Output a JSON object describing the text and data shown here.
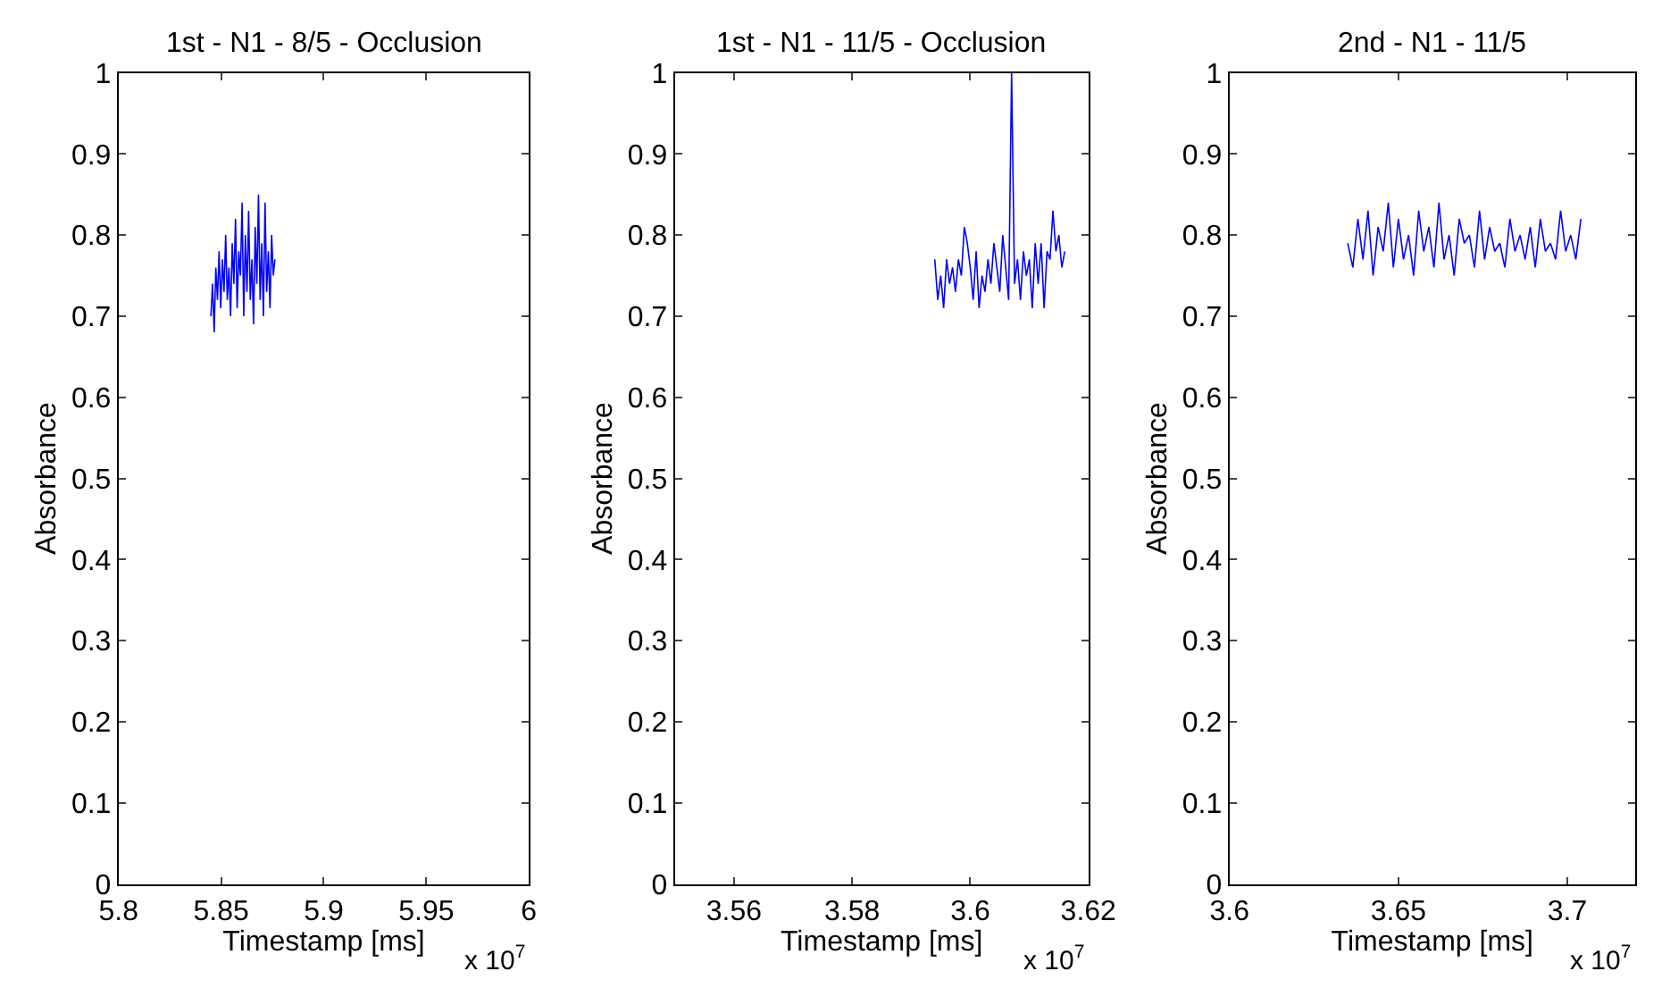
{
  "chart_data": [
    {
      "type": "line",
      "title": "1st - N1 - 8/5 - Occlusion",
      "xlabel": "Timestamp [ms]",
      "ylabel": "Absorbance",
      "annotations": [
        "x 10$^{7}$"
      ],
      "xlim": [
        5.8,
        6
      ],
      "xticks": [
        5.8,
        5.85,
        5.9,
        5.95,
        6
      ],
      "ylim": [
        0,
        1
      ],
      "yticks": [
        0,
        0.1,
        0.2,
        0.3,
        0.4,
        0.5,
        0.6,
        0.7,
        0.8,
        0.9,
        1
      ],
      "series": [
        {
          "color": "#0000ff",
          "x": [
            5.845,
            5.8458,
            5.8466,
            5.8474,
            5.8482,
            5.849,
            5.8498,
            5.8506,
            5.8514,
            5.8522,
            5.853,
            5.8538,
            5.8546,
            5.8554,
            5.8562,
            5.857,
            5.8578,
            5.8586,
            5.8594,
            5.8602,
            5.861,
            5.8618,
            5.8626,
            5.8634,
            5.8642,
            5.865,
            5.8658,
            5.8666,
            5.8674,
            5.8682,
            5.869,
            5.8698,
            5.8706,
            5.8714,
            5.8722,
            5.873,
            5.8738,
            5.8746,
            5.8754,
            5.8762
          ],
          "values": [
            0.7,
            0.74,
            0.68,
            0.76,
            0.72,
            0.78,
            0.71,
            0.77,
            0.73,
            0.8,
            0.72,
            0.76,
            0.7,
            0.79,
            0.74,
            0.82,
            0.71,
            0.78,
            0.75,
            0.84,
            0.7,
            0.8,
            0.73,
            0.83,
            0.72,
            0.77,
            0.69,
            0.81,
            0.74,
            0.85,
            0.72,
            0.79,
            0.7,
            0.84,
            0.73,
            0.78,
            0.71,
            0.8,
            0.75,
            0.77
          ]
        }
      ]
    },
    {
      "type": "line",
      "title": "1st - N1 - 11/5 - Occlusion",
      "xlabel": "Timestamp [ms]",
      "ylabel": "Absorbance",
      "annotations": [
        "x 10$^{7}$"
      ],
      "xlim": [
        3.55,
        3.62
      ],
      "xticks": [
        3.56,
        3.58,
        3.6,
        3.62
      ],
      "ylim": [
        0,
        1
      ],
      "yticks": [
        0,
        0.1,
        0.2,
        0.3,
        0.4,
        0.5,
        0.6,
        0.7,
        0.8,
        0.9,
        1
      ],
      "series": [
        {
          "color": "#0000ff",
          "x": [
            3.594,
            3.5945,
            3.595,
            3.5955,
            3.596,
            3.5965,
            3.597,
            3.5975,
            3.598,
            3.5985,
            3.599,
            3.5995,
            3.6,
            3.6005,
            3.601,
            3.6015,
            3.602,
            3.6025,
            3.603,
            3.6035,
            3.604,
            3.6045,
            3.605,
            3.6055,
            3.606,
            3.6065,
            3.607,
            3.6075,
            3.608,
            3.6085,
            3.609,
            3.6095,
            3.61,
            3.6105,
            3.611,
            3.6115,
            3.612,
            3.6125,
            3.613,
            3.6135,
            3.614,
            3.6145,
            3.615,
            3.6155,
            3.616
          ],
          "values": [
            0.77,
            0.72,
            0.75,
            0.71,
            0.77,
            0.74,
            0.76,
            0.73,
            0.77,
            0.75,
            0.81,
            0.79,
            0.76,
            0.72,
            0.78,
            0.71,
            0.75,
            0.73,
            0.77,
            0.74,
            0.79,
            0.76,
            0.73,
            0.8,
            0.76,
            0.72,
            1.0,
            0.74,
            0.77,
            0.72,
            0.78,
            0.75,
            0.77,
            0.71,
            0.79,
            0.74,
            0.79,
            0.71,
            0.78,
            0.77,
            0.83,
            0.78,
            0.8,
            0.76,
            0.78
          ]
        }
      ]
    },
    {
      "type": "line",
      "title": "2nd - N1 - 11/5",
      "xlabel": "Timestamp [ms]",
      "ylabel": "Absorbance",
      "annotations": [
        "x 10$^{7}$"
      ],
      "xlim": [
        3.6,
        3.72
      ],
      "xticks": [
        3.6,
        3.65,
        3.7
      ],
      "ylim": [
        0,
        1
      ],
      "yticks": [
        0,
        0.1,
        0.2,
        0.3,
        0.4,
        0.5,
        0.6,
        0.7,
        0.8,
        0.9,
        1
      ],
      "series": [
        {
          "color": "#0000ff",
          "x": [
            3.635,
            3.6365,
            3.638,
            3.6395,
            3.641,
            3.6425,
            3.644,
            3.6455,
            3.647,
            3.6485,
            3.65,
            3.6515,
            3.653,
            3.6545,
            3.656,
            3.6575,
            3.659,
            3.6605,
            3.662,
            3.6635,
            3.665,
            3.6665,
            3.668,
            3.6695,
            3.671,
            3.6725,
            3.674,
            3.6755,
            3.677,
            3.6785,
            3.68,
            3.6815,
            3.683,
            3.6845,
            3.686,
            3.6875,
            3.689,
            3.6905,
            3.692,
            3.6935,
            3.695,
            3.6965,
            3.698,
            3.6995,
            3.701,
            3.7025,
            3.704
          ],
          "values": [
            0.79,
            0.76,
            0.82,
            0.77,
            0.83,
            0.75,
            0.81,
            0.78,
            0.84,
            0.76,
            0.82,
            0.77,
            0.8,
            0.75,
            0.83,
            0.78,
            0.81,
            0.76,
            0.84,
            0.77,
            0.8,
            0.75,
            0.82,
            0.79,
            0.8,
            0.76,
            0.83,
            0.77,
            0.81,
            0.78,
            0.79,
            0.76,
            0.82,
            0.78,
            0.8,
            0.77,
            0.81,
            0.76,
            0.82,
            0.78,
            0.79,
            0.77,
            0.83,
            0.78,
            0.8,
            0.77,
            0.82
          ]
        }
      ]
    }
  ]
}
